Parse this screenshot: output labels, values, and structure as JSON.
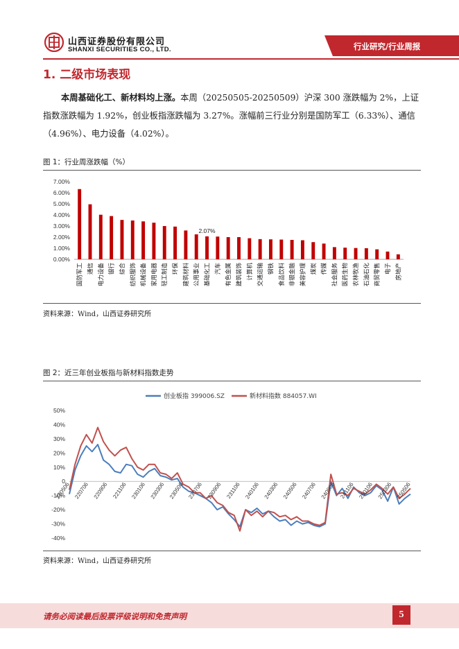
{
  "header": {
    "company_cn": "山西证券股份有限公司",
    "company_en": "SHANXI SECURITIES CO., LTD.",
    "report_type": "行业研究/行业周报"
  },
  "section": {
    "title": "1. 二级市场表现"
  },
  "paragraph": {
    "bold_lead": "本周基础化工、新材料均上涨。",
    "text": "本周（20250505-20250509）沪深 300 涨跌幅为 2%，上证指数涨跌幅为 1.92%，创业板指涨跌幅为 3.27%。涨幅前三行业分别是国防军工（6.33%）、通信（4.96%）、电力设备（4.02%）。"
  },
  "figure1": {
    "caption": "图 1：行业周涨跌幅（%）",
    "source": "资料来源：Wind，山西证券研究所"
  },
  "figure2": {
    "caption": "图 2：近三年创业板指与新材料指数走势",
    "source": "资料来源：Wind，山西证券研究所"
  },
  "footer": {
    "disclaimer": "请务必阅读最后股票评级说明和免责声明",
    "page_number": "5"
  },
  "colors": {
    "brand_red": "#c0282e",
    "bar_red": "#c00000",
    "line_blue": "#4a7ebb",
    "line_red": "#c0504d",
    "footer_bg": "#f7dcdc"
  },
  "chart_data": [
    {
      "type": "bar",
      "categories": [
        "国防军工",
        "通信",
        "电力设备",
        "银行",
        "综合",
        "纺织服饰",
        "机械设备",
        "家用电器",
        "轻工制造",
        "环保",
        "建筑材料",
        "公用事业",
        "基础化工",
        "汽车",
        "有色金属",
        "建筑装饰",
        "计算机",
        "交通运输",
        "钢铁",
        "食品饮料",
        "非银金融",
        "美容护理",
        "煤炭",
        "传媒",
        "社会服务",
        "医药生物",
        "农林牧渔",
        "石油石化",
        "商贸零售",
        "电子",
        "房地产"
      ],
      "values": [
        6.33,
        4.96,
        4.02,
        3.9,
        3.55,
        3.5,
        3.42,
        3.3,
        3.0,
        2.95,
        2.6,
        2.25,
        2.07,
        2.05,
        2.0,
        2.0,
        1.9,
        1.82,
        1.8,
        1.78,
        1.75,
        1.72,
        1.55,
        1.42,
        1.1,
        1.05,
        1.02,
        1.0,
        0.9,
        0.7,
        0.45
      ],
      "annotation": {
        "category": "基础化工",
        "label": "2.07%"
      },
      "yticks": [
        "0.00%",
        "1.00%",
        "2.00%",
        "3.00%",
        "4.00%",
        "5.00%",
        "6.00%",
        "7.00%"
      ],
      "ylim": [
        0,
        7
      ],
      "grid": false,
      "legend": "none"
    },
    {
      "type": "line",
      "legend_position": "top",
      "series": [
        {
          "name": "创业板指 399006.SZ",
          "color": "#4a7ebb",
          "values": [
            -9,
            8,
            18,
            25,
            21,
            26,
            15,
            12,
            7,
            6,
            12,
            11,
            5,
            3,
            7,
            9,
            4,
            3,
            1,
            2,
            -4,
            -7,
            -8,
            -10,
            -12,
            -15,
            -20,
            -18,
            -23,
            -27,
            -32,
            -20,
            -22,
            -19,
            -23,
            -21,
            -25,
            -28,
            -27,
            -31,
            -28,
            -30,
            -29,
            -31,
            -32,
            -30,
            0,
            -10,
            -5,
            -12,
            -4,
            -8,
            -10,
            -8,
            -3,
            -6,
            -14,
            -4,
            -16,
            -12,
            -9
          ]
        },
        {
          "name": "新材料指数 884057.WI",
          "color": "#c0504d",
          "values": [
            -6,
            12,
            25,
            33,
            27,
            38,
            28,
            22,
            18,
            22,
            24,
            16,
            10,
            8,
            12,
            12,
            6,
            5,
            2,
            6,
            -2,
            -4,
            -8,
            -8,
            -12,
            -10,
            -15,
            -17,
            -22,
            -24,
            -35,
            -20,
            -24,
            -21,
            -25,
            -21,
            -22,
            -25,
            -24,
            -27,
            -25,
            -28,
            -28,
            -30,
            -31,
            -29,
            5,
            -9,
            -8,
            -10,
            -5,
            -7,
            -9,
            -6,
            -2,
            -5,
            -9,
            -4,
            -12,
            -9,
            -5
          ]
        }
      ],
      "x_ticks": [
        "220506",
        "220706",
        "220906",
        "221106",
        "230106",
        "230306",
        "230506",
        "230706",
        "230906",
        "231106",
        "240106",
        "240306",
        "240506",
        "240706",
        "240906",
        "241106",
        "250106",
        "250306",
        "250506"
      ],
      "yticks": [
        "-40%",
        "-30%",
        "-20%",
        "-10%",
        "0",
        "10%",
        "20%",
        "30%",
        "40%",
        "50%"
      ],
      "ylim": [
        -40,
        50
      ],
      "grid": false
    }
  ]
}
